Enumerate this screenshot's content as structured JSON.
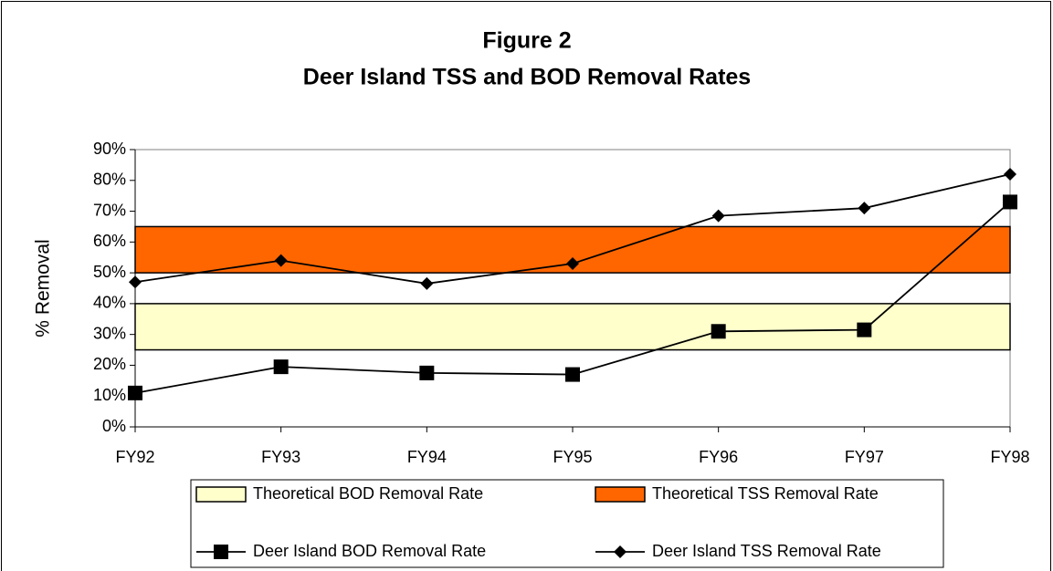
{
  "chart_data": {
    "type": "line",
    "title": "Figure 2",
    "subtitle": "Deer Island TSS and BOD Removal Rates",
    "ylabel": "% Removal",
    "categories": [
      "FY92",
      "FY93",
      "FY94",
      "FY95",
      "FY96",
      "FY97",
      "FY98"
    ],
    "bands": [
      {
        "name": "Theoretical BOD Removal Rate",
        "color": "#ffffcc",
        "range": [
          25,
          40
        ]
      },
      {
        "name": "Theoretical TSS Removal Rate",
        "color": "#ff6600",
        "range": [
          50,
          65
        ]
      }
    ],
    "series": [
      {
        "name": "Deer Island BOD Removal Rate",
        "color": "#000000",
        "marker": "square",
        "values": [
          11,
          19.5,
          17.5,
          17,
          31,
          31.5,
          73
        ]
      },
      {
        "name": "Deer Island TSS Removal Rate",
        "color": "#000000",
        "marker": "diamond",
        "values": [
          47,
          54,
          46.5,
          53,
          68.5,
          71,
          82
        ]
      }
    ],
    "ylim": [
      0,
      90
    ],
    "yticks": [
      {
        "value": 0,
        "label": "0%"
      },
      {
        "value": 10,
        "label": "10%"
      },
      {
        "value": 20,
        "label": "20%"
      },
      {
        "value": 30,
        "label": "30%"
      },
      {
        "value": 40,
        "label": "40%"
      },
      {
        "value": 50,
        "label": "50%"
      },
      {
        "value": 60,
        "label": "60%"
      },
      {
        "value": 70,
        "label": "70%"
      },
      {
        "value": 80,
        "label": "80%"
      },
      {
        "value": 90,
        "label": "90%"
      }
    ]
  }
}
